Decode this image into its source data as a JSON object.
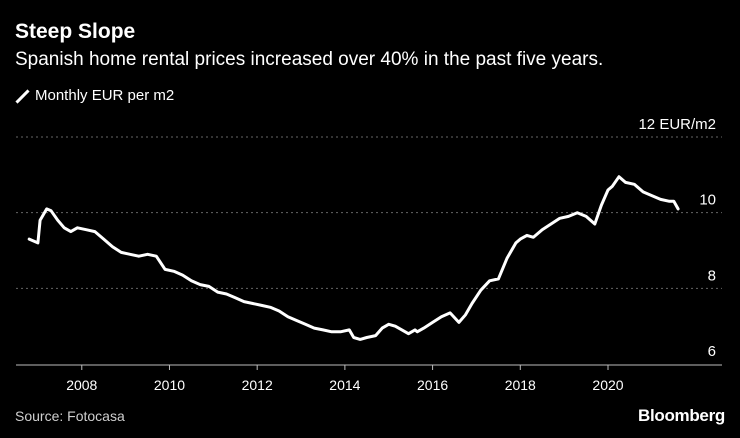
{
  "header": {
    "title": "Steep Slope",
    "subtitle": "Spanish home rental prices increased over 40% in the past five years."
  },
  "footer": {
    "source": "Source: Fotocasa",
    "brand": "Bloomberg"
  },
  "colors": {
    "background": "#000000",
    "line": "#ffffff",
    "grid": "#666666"
  },
  "chart_data": {
    "type": "line",
    "title": "Steep Slope",
    "subtitle": "Spanish home rental prices increased over 40% in the past five years.",
    "xlabel": "",
    "ylabel": "",
    "y_unit_label": "12 EUR/m2",
    "xlim": [
      2006.5,
      2022.6
    ],
    "ylim": [
      6,
      12
    ],
    "x_ticks": [
      "2008",
      "2010",
      "2012",
      "2014",
      "2016",
      "2018",
      "2020"
    ],
    "y_ticks": [
      "6",
      "8",
      "10",
      "12 EUR/m2"
    ],
    "grid": true,
    "legend": "top-left",
    "series": [
      {
        "name": "Monthly EUR per m2",
        "x": [
          2006.8,
          2007.0,
          2007.05,
          2007.2,
          2007.3,
          2007.45,
          2007.6,
          2007.75,
          2007.9,
          2008.1,
          2008.3,
          2008.5,
          2008.7,
          2008.9,
          2009.1,
          2009.3,
          2009.5,
          2009.7,
          2009.9,
          2010.1,
          2010.3,
          2010.5,
          2010.7,
          2010.9,
          2011.1,
          2011.3,
          2011.5,
          2011.7,
          2011.9,
          2012.1,
          2012.3,
          2012.5,
          2012.7,
          2012.9,
          2013.1,
          2013.3,
          2013.5,
          2013.7,
          2013.9,
          2014.1,
          2014.2,
          2014.35,
          2014.5,
          2014.7,
          2014.85,
          2015.0,
          2015.15,
          2015.3,
          2015.45,
          2015.6,
          2015.65,
          2015.8,
          2016.0,
          2016.2,
          2016.4,
          2016.6,
          2016.75,
          2016.9,
          2017.1,
          2017.3,
          2017.5,
          2017.7,
          2017.9,
          2018.0,
          2018.15,
          2018.3,
          2018.5,
          2018.7,
          2018.9,
          2019.1,
          2019.3,
          2019.5,
          2019.7,
          2019.85,
          2020.0,
          2020.1,
          2020.25,
          2020.4,
          2020.6,
          2020.8,
          2021.0,
          2021.2,
          2021.4,
          2021.5,
          2021.6
        ],
        "values": [
          9.3,
          9.2,
          9.8,
          10.1,
          10.05,
          9.8,
          9.6,
          9.5,
          9.6,
          9.55,
          9.5,
          9.3,
          9.1,
          8.95,
          8.9,
          8.85,
          8.9,
          8.85,
          8.5,
          8.45,
          8.35,
          8.2,
          8.1,
          8.05,
          7.9,
          7.85,
          7.75,
          7.65,
          7.6,
          7.55,
          7.5,
          7.4,
          7.25,
          7.15,
          7.05,
          6.95,
          6.9,
          6.85,
          6.85,
          6.9,
          6.7,
          6.65,
          6.7,
          6.75,
          6.95,
          7.05,
          7.0,
          6.9,
          6.8,
          6.9,
          6.85,
          6.95,
          7.1,
          7.25,
          7.35,
          7.1,
          7.3,
          7.6,
          7.95,
          8.2,
          8.25,
          8.8,
          9.2,
          9.3,
          9.4,
          9.35,
          9.55,
          9.7,
          9.85,
          9.9,
          10.0,
          9.9,
          9.7,
          10.2,
          10.6,
          10.7,
          10.95,
          10.8,
          10.75,
          10.55,
          10.45,
          10.35,
          10.3,
          10.3,
          10.1
        ]
      }
    ]
  }
}
